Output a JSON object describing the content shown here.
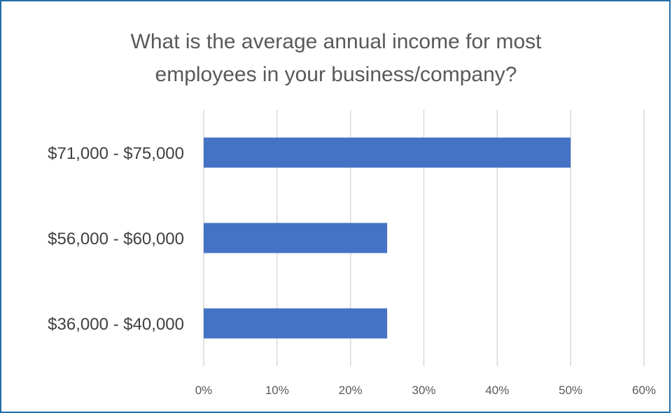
{
  "chart_data": {
    "type": "bar",
    "orientation": "horizontal",
    "title": "What is the average annual income for most\nemployees in your business/company?",
    "categories": [
      "$71,000 - $75,000",
      "$56,000 - $60,000",
      "$36,000 - $40,000"
    ],
    "values": [
      50,
      25,
      25
    ],
    "xlim": [
      0,
      60
    ],
    "xticks": [
      0,
      10,
      20,
      30,
      40,
      50,
      60
    ],
    "xtick_labels": [
      "0%",
      "10%",
      "20%",
      "30%",
      "40%",
      "50%",
      "60%"
    ],
    "xlabel": "",
    "ylabel": "",
    "grid": "vertical",
    "legend": "none",
    "colors": {
      "bar": "#4472c4",
      "grid": "#d9d9d9",
      "frame": "#1f6fa8"
    }
  }
}
